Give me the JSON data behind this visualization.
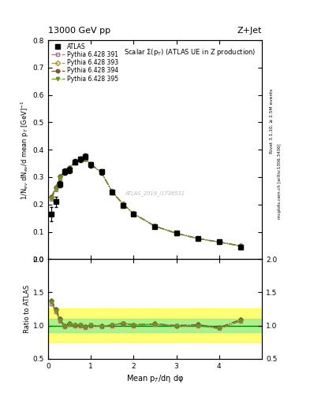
{
  "title_top": "13000 GeV pp",
  "title_right": "Z+Jet",
  "plot_title": "Scalar Σ(p$_T$) (ATLAS UE in Z production)",
  "ylabel_main": "1/N$_{ev}$ dN$_{ev}$/d mean p$_T$ [GeV]$^{-1}$",
  "ylabel_ratio": "Ratio to ATLAS",
  "xlabel": "Mean p$_T$/dη dφ",
  "watermark": "ATLAS_2019_I1736531",
  "right_label1": "Rivet 3.1.10, ≥ 2.5M events",
  "right_label2": "mcplots.cern.ch [arXiv:1306.3436]",
  "atlas_x": [
    0.08,
    0.18,
    0.28,
    0.38,
    0.5,
    0.625,
    0.75,
    0.875,
    1.0,
    1.25,
    1.5,
    1.75,
    2.0,
    2.5,
    3.0,
    3.5,
    4.0,
    4.5
  ],
  "atlas_y": [
    0.165,
    0.21,
    0.275,
    0.32,
    0.325,
    0.355,
    0.365,
    0.375,
    0.345,
    0.32,
    0.245,
    0.195,
    0.165,
    0.118,
    0.095,
    0.075,
    0.065,
    0.045
  ],
  "atlas_yerr": [
    0.025,
    0.018,
    0.012,
    0.012,
    0.012,
    0.01,
    0.01,
    0.01,
    0.01,
    0.01,
    0.008,
    0.007,
    0.007,
    0.006,
    0.005,
    0.004,
    0.004,
    0.003
  ],
  "mc_x": [
    0.08,
    0.18,
    0.28,
    0.38,
    0.5,
    0.625,
    0.75,
    0.875,
    1.0,
    1.25,
    1.5,
    1.75,
    2.0,
    2.5,
    3.0,
    3.5,
    4.0,
    4.5
  ],
  "p391_y": [
    0.22,
    0.255,
    0.295,
    0.315,
    0.33,
    0.355,
    0.365,
    0.365,
    0.345,
    0.315,
    0.245,
    0.2,
    0.165,
    0.12,
    0.094,
    0.075,
    0.062,
    0.048
  ],
  "p391_color": "#cc6688",
  "p393_y": [
    0.228,
    0.262,
    0.302,
    0.32,
    0.335,
    0.357,
    0.367,
    0.367,
    0.347,
    0.317,
    0.247,
    0.202,
    0.167,
    0.121,
    0.095,
    0.076,
    0.063,
    0.049
  ],
  "p393_color": "#aa9944",
  "p394_y": [
    0.228,
    0.262,
    0.302,
    0.32,
    0.335,
    0.357,
    0.367,
    0.367,
    0.347,
    0.317,
    0.247,
    0.202,
    0.167,
    0.121,
    0.095,
    0.076,
    0.063,
    0.049
  ],
  "p394_color": "#7a5535",
  "p395_y": [
    0.222,
    0.257,
    0.297,
    0.316,
    0.332,
    0.356,
    0.366,
    0.366,
    0.346,
    0.316,
    0.246,
    0.201,
    0.166,
    0.12,
    0.094,
    0.075,
    0.062,
    0.048
  ],
  "p395_color": "#669922",
  "ratio_391": [
    1.33,
    1.21,
    1.07,
    0.98,
    1.015,
    1.0,
    1.0,
    0.973,
    1.0,
    0.984,
    1.0,
    1.026,
    1.0,
    1.017,
    0.99,
    1.0,
    0.954,
    1.067
  ],
  "ratio_393": [
    1.38,
    1.248,
    1.098,
    1.0,
    1.031,
    1.006,
    1.005,
    0.979,
    1.006,
    0.99,
    1.008,
    1.036,
    1.012,
    1.025,
    1.0,
    1.013,
    0.969,
    1.089
  ],
  "ratio_394": [
    1.38,
    1.248,
    1.098,
    1.0,
    1.031,
    1.006,
    1.005,
    0.979,
    1.006,
    0.99,
    1.008,
    1.036,
    1.012,
    1.025,
    1.0,
    1.013,
    0.969,
    1.089
  ],
  "ratio_395": [
    1.345,
    1.224,
    1.08,
    0.988,
    1.022,
    1.003,
    1.003,
    0.976,
    1.003,
    0.988,
    1.004,
    1.031,
    1.006,
    1.017,
    0.989,
    1.0,
    0.954,
    1.067
  ],
  "ylim_main": [
    0.0,
    0.8
  ],
  "ylim_ratio": [
    0.5,
    2.0
  ],
  "xlim": [
    0.0,
    5.0
  ],
  "xticks": [
    0,
    1,
    2,
    3,
    4
  ],
  "band_yellow": [
    0.75,
    1.25
  ],
  "band_green": [
    0.9,
    1.1
  ]
}
